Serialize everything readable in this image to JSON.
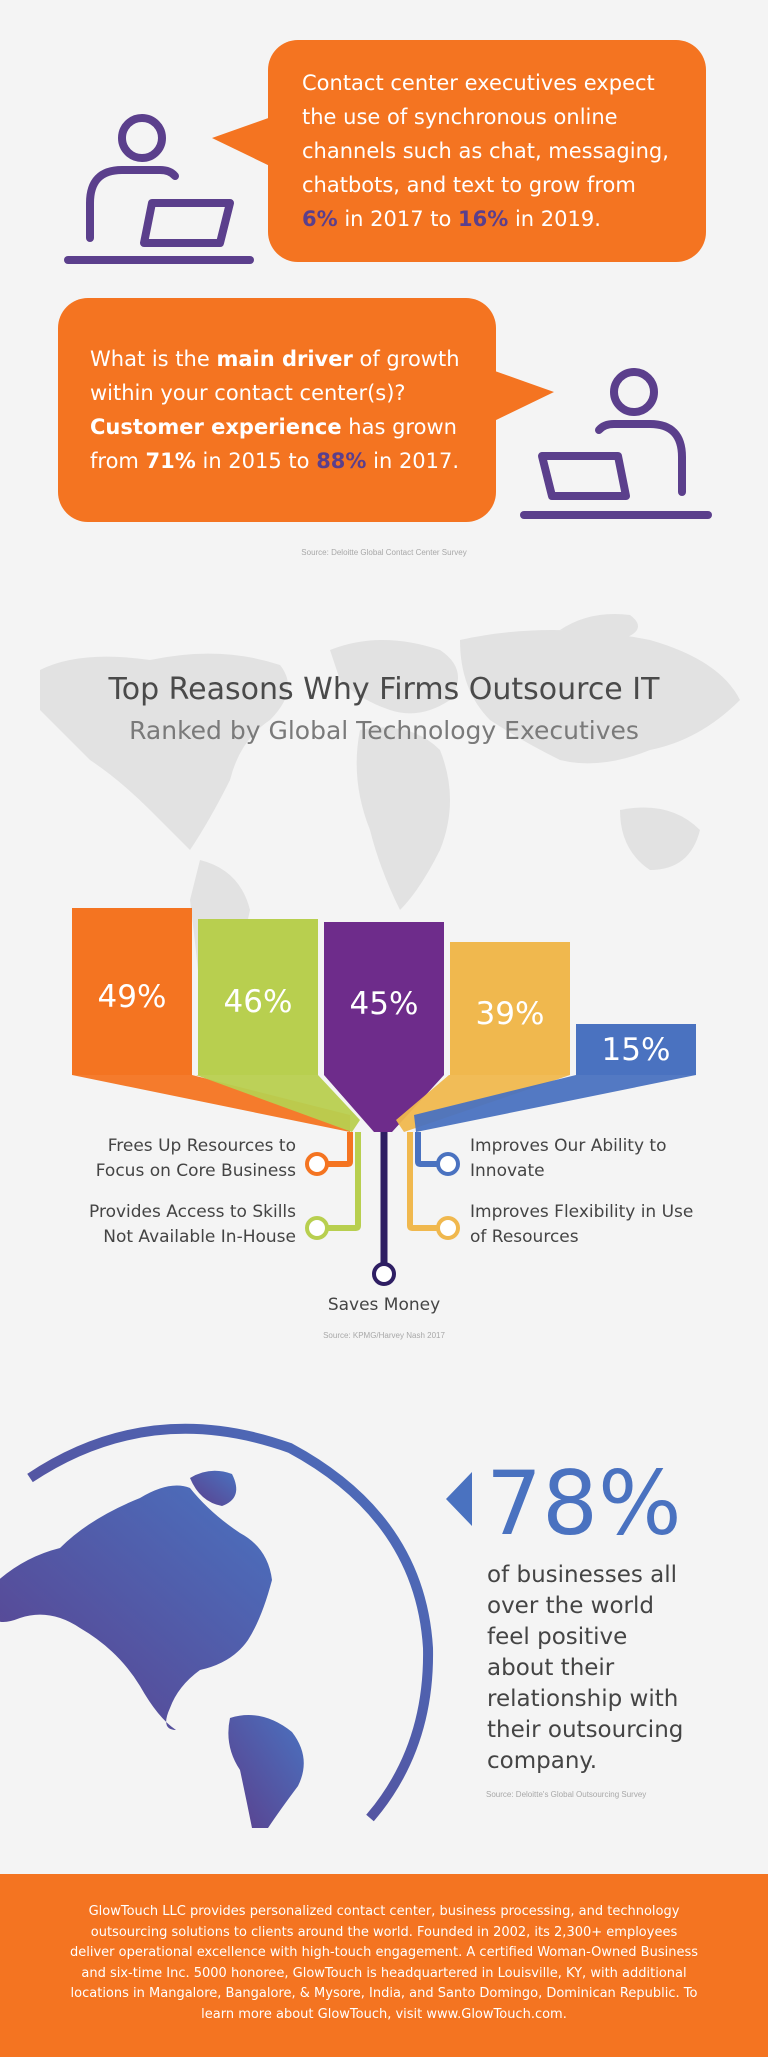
{
  "bubble1": {
    "line1": "Contact center executives expect",
    "line2": "the use of synchronous online",
    "line3": "channels such as chat, messaging,",
    "line4": "chatbots, and text to grow from",
    "v1": "6%",
    "mid": " in 2017 to ",
    "v2": "16%",
    "end": " in 2019."
  },
  "bubble2": {
    "l1a": "What is the ",
    "l1b": "main driver",
    "l1c": " of growth",
    "l2": "within your contact center(s)?",
    "l3a": "Customer experience",
    "l3b": " has grown",
    "l4a": "from ",
    "v1": "71%",
    "l4b": " in 2015 to ",
    "v2": "88%",
    "l4c": " in 2017."
  },
  "source1": "Source: Deloitte Global Contact Center Survey",
  "outsource": {
    "title": "Top Reasons Why Firms Outsource IT",
    "subtitle": "Ranked by Global Technology Executives",
    "source": "Source: KPMG/Harvey Nash 2017"
  },
  "chart_data": {
    "type": "bar",
    "categories": [
      "Frees Up Resources to Focus on Core Business",
      "Provides Access to Skills Not Available In-House",
      "Saves Money",
      "Improves Flexibility in Use of Resources",
      "Improves Our Ability to Innovate"
    ],
    "values": [
      49,
      46,
      45,
      39,
      15
    ],
    "value_labels": [
      "49%",
      "46%",
      "45%",
      "39%",
      "15%"
    ],
    "colors": [
      "#f47421",
      "#b8cf4f",
      "#6e2c8b",
      "#f0b84e",
      "#4a72c0"
    ],
    "title": "Top Reasons Why Firms Outsource IT",
    "subtitle": "Ranked by Global Technology Executives"
  },
  "legend": {
    "frees": [
      "Frees Up Resources to",
      "Focus on Core Business"
    ],
    "skills": [
      "Provides Access to Skills",
      "Not Available In-House"
    ],
    "money": "Saves Money",
    "innovate": [
      "Improves Our Ability to",
      "Innovate"
    ],
    "flex": [
      "Improves Flexibility in Use",
      "of Resources"
    ]
  },
  "stat": {
    "value": "78%",
    "lines": [
      "of businesses all",
      "over the world",
      "feel positive",
      "about their",
      "relationship with",
      "their outsourcing",
      "company."
    ],
    "source": "Source: Deloitte's Global Outsourcing Survey"
  },
  "footer": {
    "text": "GlowTouch LLC provides personalized contact center, business processing, and technology outsourcing solutions to clients around the world. Founded in 2002, its 2,300+ employees deliver operational excellence with high-touch engagement. A certified Woman-Owned Business and six-time Inc. 5000 honoree, GlowTouch is headquartered in Louisville, KY, with additional locations in Mangalore, Bangalore, & Mysore, India, and Santo Domingo, Dominican Republic.  To learn more about GlowTouch, visit www.GlowTouch.com."
  },
  "colors": {
    "orange": "#f47421",
    "purple": "#5b3f8c",
    "lime": "#b8cf4f",
    "violet": "#6e2c8b",
    "gold": "#f0b84e",
    "blue": "#4a72c0"
  }
}
